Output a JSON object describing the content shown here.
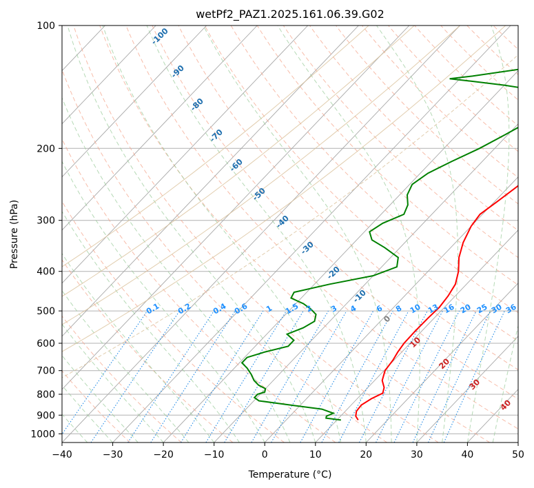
{
  "chart_data": {
    "type": "line",
    "title": "wetPf2_PAZ1.2025.161.06.39.G02",
    "xlabel": "Temperature (°C)",
    "ylabel": "Pressure (hPa)",
    "xlim": [
      -40,
      50
    ],
    "ylim": [
      1050,
      100
    ],
    "y_scale": "log",
    "grid": true,
    "x_ticks": [
      -40,
      -30,
      -20,
      -10,
      0,
      10,
      20,
      30,
      40,
      50
    ],
    "y_ticks": [
      100,
      200,
      300,
      400,
      500,
      600,
      700,
      800,
      900,
      1000
    ],
    "series": [
      {
        "color": "#ff0000",
        "p": [
          925,
          905,
          880,
          850,
          820,
          795,
          770,
          740,
          700,
          660,
          630,
          600,
          560,
          520,
          490,
          460,
          430,
          400,
          370,
          340,
          310,
          290,
          270,
          250,
          230,
          210,
          190,
          175,
          165,
          157,
          150,
          145,
          140,
          134,
          128,
          122,
          117,
          112,
          108,
          104,
          100
        ],
        "t": [
          14.2,
          13.0,
          12.2,
          12.0,
          12.8,
          14.0,
          13.2,
          11.5,
          10.2,
          9.8,
          9.2,
          8.8,
          8.7,
          8.8,
          9.0,
          8.6,
          7.8,
          6.0,
          3.5,
          1.5,
          0.0,
          -0.5,
          0.5,
          1.5,
          2.5,
          3.8,
          5.0,
          5.5,
          6.2,
          7.5,
          10.0,
          13.0,
          14.5,
          15.0,
          14.0,
          12.5,
          13.0,
          14.5,
          16.0,
          17.8,
          20.5
        ]
      },
      {
        "color": "#008000",
        "p": [
          925,
          915,
          905,
          890,
          870,
          850,
          830,
          815,
          800,
          790,
          775,
          760,
          740,
          715,
          690,
          670,
          650,
          630,
          610,
          590,
          570,
          550,
          530,
          510,
          495,
          480,
          465,
          450,
          430,
          410,
          390,
          370,
          350,
          335,
          320,
          305,
          290,
          275,
          260,
          245,
          230,
          215,
          200,
          185,
          170,
          160,
          150,
          145,
          140,
          137,
          135,
          133,
          128,
          120,
          115,
          110,
          105,
          100
        ],
        "t": [
          10.8,
          7.5,
          7.2,
          8.0,
          5.0,
          -2.0,
          -9.0,
          -10.5,
          -10.5,
          -9.5,
          -10.0,
          -12.0,
          -13.8,
          -15.5,
          -17.5,
          -19.5,
          -19.5,
          -17.0,
          -13.5,
          -13.5,
          -16.0,
          -14.0,
          -13.0,
          -14.0,
          -16.0,
          -18.5,
          -22.0,
          -22.5,
          -17.0,
          -10.0,
          -7.0,
          -8.5,
          -13.0,
          -17.0,
          -19.0,
          -18.0,
          -15.5,
          -16.5,
          -18.5,
          -19.5,
          -18.5,
          -16.0,
          -13.0,
          -10.5,
          -8.0,
          -6.5,
          -7.0,
          -11.0,
          -20.0,
          -27.0,
          -32.0,
          -28.0,
          -20.0,
          -14.0,
          -10.5,
          -9.5,
          -8.0,
          -6.5
        ]
      }
    ],
    "isotherm_labels": [
      "-100",
      "-90",
      "-80",
      "-70",
      "-60",
      "-50",
      "-40",
      "-30",
      "-20",
      "-10"
    ],
    "mixing_ratio_labels": [
      "0.1",
      "0.2",
      "0.4",
      "0.6",
      "1",
      "1.5",
      "2",
      "3",
      "4",
      "6",
      "8",
      "10",
      "13",
      "16",
      "20",
      "25",
      "30",
      "36"
    ],
    "mixing_ratio_values": [
      0.1,
      0.2,
      0.4,
      0.6,
      1,
      1.5,
      2,
      3,
      4,
      6,
      8,
      10,
      13,
      16,
      20,
      25,
      30,
      36
    ],
    "dry_adiabat_labels": [
      "0",
      "10",
      "20",
      "30",
      "40"
    ]
  }
}
